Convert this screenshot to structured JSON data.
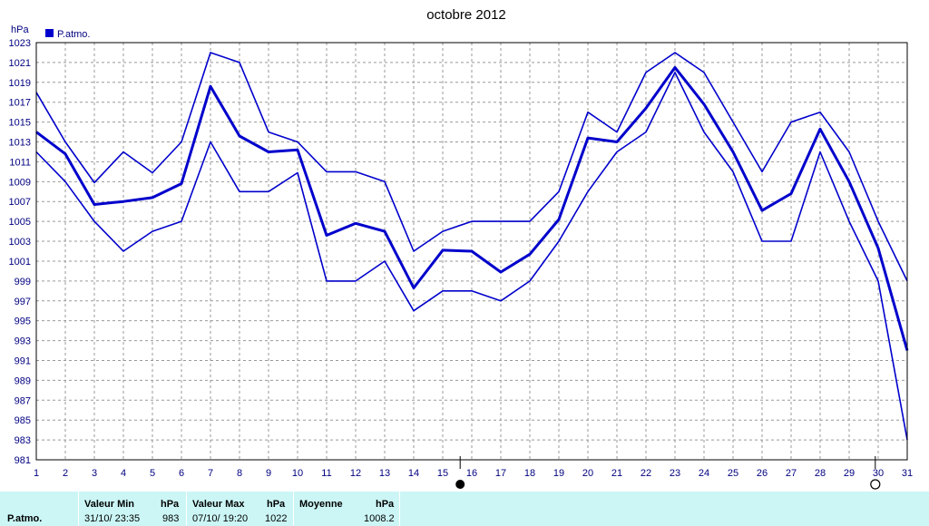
{
  "chart_data": {
    "type": "line",
    "title": "octobre 2012",
    "ylabel": "hPa",
    "legend": "P.atmo.",
    "legend_position": "top-left",
    "grid": true,
    "ylim": [
      981,
      1023
    ],
    "y_ticks": [
      981,
      983,
      985,
      987,
      989,
      991,
      993,
      995,
      997,
      999,
      1001,
      1003,
      1005,
      1007,
      1009,
      1011,
      1013,
      1015,
      1017,
      1019,
      1021,
      1023
    ],
    "x": [
      1,
      2,
      3,
      4,
      5,
      6,
      7,
      8,
      9,
      10,
      11,
      12,
      13,
      14,
      15,
      16,
      17,
      18,
      19,
      20,
      21,
      22,
      23,
      24,
      25,
      26,
      27,
      28,
      29,
      30,
      31
    ],
    "series": [
      {
        "role": "max",
        "values": [
          1018,
          1013,
          1008.9,
          1012,
          1009.9,
          1013,
          1022,
          1021,
          1014,
          1013,
          1010,
          1010,
          1009,
          1002,
          1004,
          1005,
          1005,
          1005,
          1008,
          1016,
          1014,
          1020,
          1022,
          1020,
          1015,
          1010,
          1015,
          1016,
          1012,
          1005,
          999
        ]
      },
      {
        "role": "mean",
        "values": [
          1014,
          1011.8,
          1006.7,
          1007,
          1007.4,
          1008.8,
          1018.6,
          1013.6,
          1012,
          1012.2,
          1003.6,
          1004.8,
          1004,
          998.3,
          1002.1,
          1002,
          999.9,
          1001.7,
          1005.2,
          1013.4,
          1013,
          1016.4,
          1020.5,
          1016.8,
          1012,
          1006.1,
          1007.8,
          1014.3,
          1009,
          1002.3,
          992
        ]
      },
      {
        "role": "min",
        "values": [
          1012,
          1009,
          1005,
          1002,
          1004,
          1005,
          1013,
          1008,
          1008,
          1009.9,
          999,
          999,
          1001,
          996,
          998,
          998,
          997,
          999,
          1003,
          1008,
          1012,
          1014,
          1020,
          1014,
          1010,
          1003,
          1003,
          1012,
          1005,
          999,
          983
        ]
      }
    ],
    "colors": {
      "line": "#0000cc",
      "grid": "#999999",
      "axis_text": "#000080"
    },
    "markers": [
      {
        "x": 15.6,
        "symbol": "full-moon-filled"
      },
      {
        "x": 29.9,
        "symbol": "new-moon-open"
      }
    ]
  },
  "footer": {
    "row_label": "P.atmo.",
    "min_header": "Valeur Min",
    "min_unit": "hPa",
    "min_date": "31/10/  23:35",
    "min_value": "983",
    "max_header": "Valeur Max",
    "max_unit": "hPa",
    "max_date": "07/10/  19:20",
    "max_value": "1022",
    "mean_header": "Moyenne",
    "mean_unit": "hPa",
    "mean_value": "1008.2"
  }
}
